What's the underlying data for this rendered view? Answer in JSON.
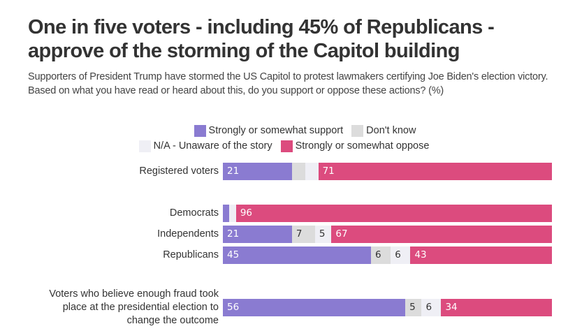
{
  "title": "One in five voters - including 45% of Republicans - approve of the storming of the Capitol building",
  "subtitle": "Supporters of President Trump have stormed the US Capitol to protest lawmakers certifying Joe Biden's election victory. Based on what you have read or heard about this, do you support or oppose these actions? (%)",
  "chart_data": {
    "type": "bar",
    "orientation": "horizontal",
    "stacked": true,
    "title": "One in five voters - including 45% of Republicans - approve of the storming of the Capitol building",
    "xlabel": "",
    "ylabel": "",
    "xlim": [
      0,
      100
    ],
    "unit": "%",
    "legend_placement": "top-center",
    "categories": [
      "Registered voters",
      "Democrats",
      "Independents",
      "Republicans",
      "Voters who believe enough fraud took place at the presidential election to change the outcome"
    ],
    "series": [
      {
        "key": "support",
        "name": "Strongly or somewhat support",
        "color": "#8a7bd1",
        "label_color": "#ffffff",
        "values": [
          21,
          2,
          21,
          45,
          56
        ],
        "labels": [
          "21",
          "",
          "21",
          "45",
          "56"
        ]
      },
      {
        "key": "dont_know",
        "name": "Don't know",
        "color": "#dcdcdc",
        "label_color": "#333333",
        "values": [
          4,
          0,
          7,
          6,
          5
        ],
        "labels": [
          "",
          "",
          "7",
          "6",
          "5"
        ]
      },
      {
        "key": "na",
        "name": "N/A - Unaware of the story",
        "color": "#efeff5",
        "label_color": "#333333",
        "values": [
          4,
          2,
          5,
          6,
          6
        ],
        "labels": [
          "",
          "",
          "5",
          "6",
          "6"
        ]
      },
      {
        "key": "oppose",
        "name": "Strongly or somewhat oppose",
        "color": "#dc4b7e",
        "label_color": "#ffffff",
        "values": [
          71,
          96,
          67,
          43,
          34
        ],
        "labels": [
          "71",
          "96",
          "67",
          "43",
          "34"
        ]
      }
    ]
  },
  "legend": {
    "row1": [
      {
        "name": "Strongly or somewhat support",
        "color": "#8a7bd1"
      },
      {
        "name": "Don't know",
        "color": "#dcdcdc"
      }
    ],
    "row2": [
      {
        "name": "N/A - Unaware of the story",
        "color": "#efeff5"
      },
      {
        "name": "Strongly or somewhat oppose",
        "color": "#dc4b7e"
      }
    ]
  }
}
